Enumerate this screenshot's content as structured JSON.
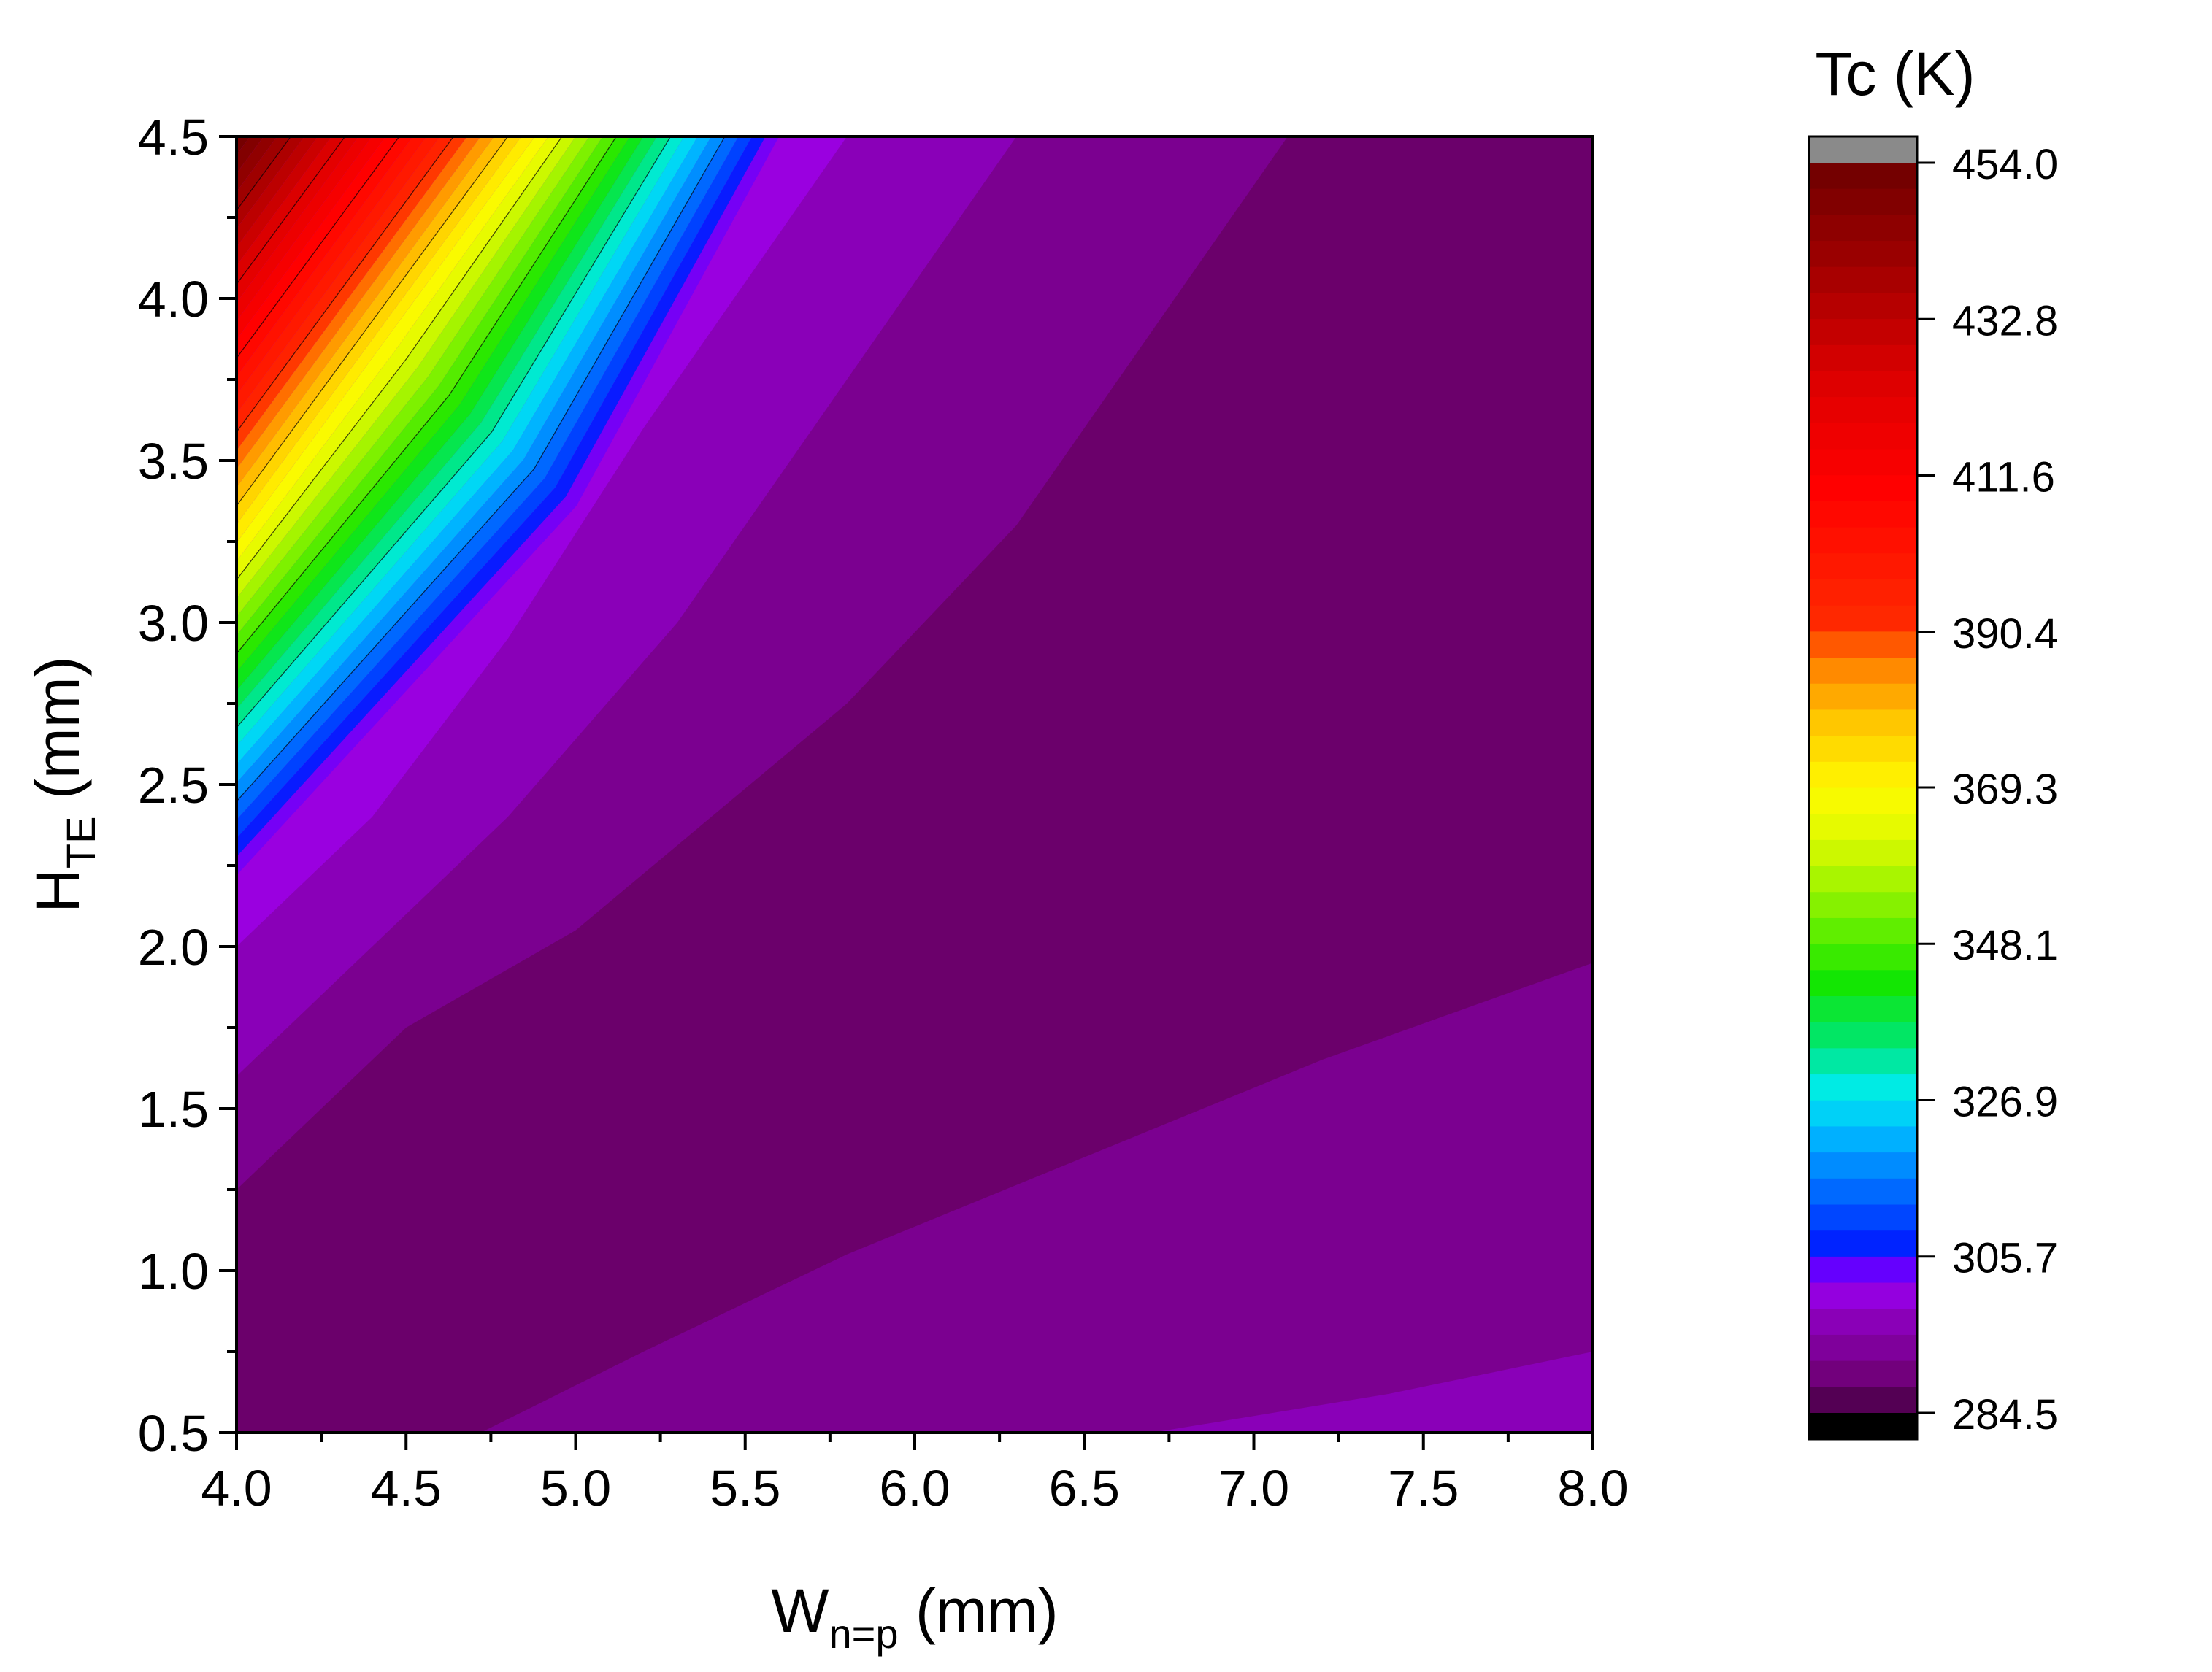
{
  "chart_data": {
    "type": "contour",
    "xlabel": {
      "main": "W",
      "sub": "n=p",
      "unit": " (mm)"
    },
    "ylabel": {
      "main": "H",
      "sub": "TE",
      "unit": " (mm)"
    },
    "xlim": [
      4.0,
      8.0
    ],
    "ylim": [
      0.5,
      4.5
    ],
    "x_ticks": [
      "4.0",
      "4.5",
      "5.0",
      "5.5",
      "6.0",
      "6.5",
      "7.0",
      "7.5",
      "8.0"
    ],
    "y_ticks": [
      "0.5",
      "1.0",
      "1.5",
      "2.0",
      "2.5",
      "3.0",
      "3.5",
      "4.0",
      "4.5"
    ],
    "x_tick_values": [
      4.0,
      4.5,
      5.0,
      5.5,
      6.0,
      6.5,
      7.0,
      7.5,
      8.0
    ],
    "y_tick_values": [
      0.5,
      1.0,
      1.5,
      2.0,
      2.5,
      3.0,
      3.5,
      4.0,
      4.5
    ],
    "colorbar": {
      "title": "Tc (K)",
      "range": [
        284.5,
        454.0
      ],
      "tick_labels": [
        "454.0",
        "432.8",
        "411.6",
        "390.4",
        "369.3",
        "348.1",
        "326.9",
        "305.7",
        "284.5"
      ],
      "tick_values": [
        454.0,
        432.8,
        411.6,
        390.4,
        369.3,
        348.1,
        326.9,
        305.7,
        284.5
      ],
      "levels": 48,
      "overflow_color": "#8a8a8a",
      "underflow_color": "#000000"
    },
    "contour_levels": [
      {
        "x_at_top": 4.0,
        "x_at_left": 4.5,
        "Tc": 454.0
      },
      {
        "x_at_top": 4.8,
        "x_at_left": 2.3,
        "Tc": 305.7
      },
      {
        "x_at_top": 5.6,
        "x_at_left": 2.2,
        "Tc": 300.0
      },
      {
        "x_at_top": 6.3,
        "x_at_left": 1.8,
        "Tc": 295.0
      },
      {
        "x_at_top": 7.1,
        "x_at_left": 1.3,
        "Tc": 290.0
      }
    ],
    "bands": [
      {
        "name": "deep-purple",
        "color": "#6b006b",
        "Tc": 287.0
      },
      {
        "name": "purple",
        "color": "#7b0090",
        "Tc": 291.0
      },
      {
        "name": "violet",
        "color": "#8a00b8",
        "Tc": 296.0
      },
      {
        "name": "violet-light",
        "color": "#9a00e0",
        "Tc": 300.0
      },
      {
        "name": "blue-violet",
        "color": "#7000ff",
        "Tc": 303.0
      },
      {
        "name": "blue",
        "color": "#0020ff",
        "Tc": 307.0
      },
      {
        "name": "azure",
        "color": "#0080ff",
        "Tc": 318.0
      },
      {
        "name": "cyan",
        "color": "#00e8f0",
        "Tc": 327.0
      },
      {
        "name": "green",
        "color": "#00e040",
        "Tc": 340.0
      },
      {
        "name": "yellow-green",
        "color": "#a0f000",
        "Tc": 355.0
      },
      {
        "name": "yellow",
        "color": "#ffff00",
        "Tc": 369.0
      },
      {
        "name": "orange",
        "color": "#ff8a00",
        "Tc": 385.0
      },
      {
        "name": "red",
        "color": "#ff0000",
        "Tc": 410.0
      },
      {
        "name": "dark-red",
        "color": "#8b0000",
        "Tc": 445.0
      }
    ]
  }
}
